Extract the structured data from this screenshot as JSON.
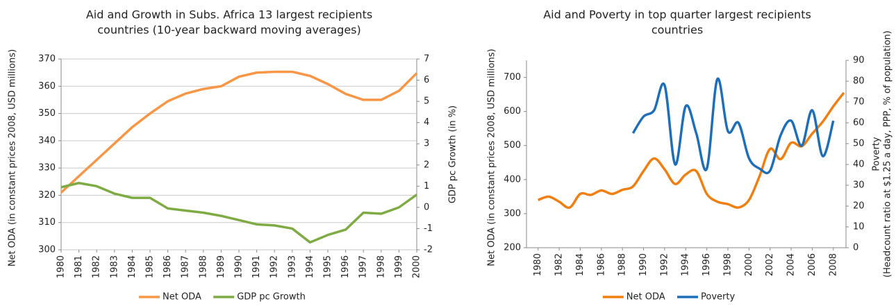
{
  "chart_data": [
    {
      "type": "line",
      "title": [
        "Aid and Growth in Subs. Africa 13 largest recipients",
        "countries (10-year backward moving averages)"
      ],
      "y_label": "Net ODA  (in constant prices 2008, USD millions)",
      "y2_label": [
        "GDP pc Growth (in %)"
      ],
      "x": [
        1980,
        1981,
        1982,
        1983,
        1984,
        1985,
        1986,
        1987,
        1988,
        1989,
        1990,
        1991,
        1992,
        1993,
        1994,
        1995,
        1996,
        1997,
        1998,
        1999,
        2000
      ],
      "xlim": [
        1980,
        2000
      ],
      "xticks": [
        1980,
        1981,
        1982,
        1983,
        1984,
        1985,
        1986,
        1987,
        1988,
        1989,
        1990,
        1991,
        1992,
        1993,
        1994,
        1995,
        1996,
        1997,
        1998,
        1999,
        2000
      ],
      "ylim": [
        300,
        370
      ],
      "yticks": [
        300,
        310,
        320,
        330,
        340,
        350,
        360,
        370
      ],
      "y2lim": [
        -2,
        7
      ],
      "y2ticks": [
        -2,
        -1,
        0,
        1,
        2,
        3,
        4,
        5,
        6,
        7
      ],
      "grid": true,
      "smooth": false,
      "legend": "bottom",
      "series": [
        {
          "name": "Net ODA",
          "color": "#f79646",
          "values": [
            321,
            327,
            333,
            339,
            345,
            350,
            354.5,
            357.3,
            359,
            360,
            363.5,
            365,
            365.3,
            365.3,
            363.8,
            360.8,
            357.2,
            355,
            355,
            358.3,
            364.8
          ]
        },
        {
          "name": "GDP pc Growth",
          "color": "#7fab45",
          "axis": "y2",
          "values": [
            0.95,
            1.15,
            1.0,
            0.65,
            0.45,
            0.45,
            -0.05,
            -0.15,
            -0.25,
            -0.4,
            -0.6,
            -0.8,
            -0.85,
            -1.0,
            -1.65,
            -1.3,
            -1.05,
            -0.25,
            -0.3,
            0,
            0.6
          ]
        }
      ]
    },
    {
      "type": "line",
      "title": [
        "Aid and Poverty in top quarter largest recipients",
        "countries"
      ],
      "y_label": "Net ODA  (in constant prices 2008, USD millions)",
      "y2_label": [
        "Poverty",
        "(Headcount ratio at $1.25 a day, PPP, % of population)"
      ],
      "x": [
        1980,
        1981,
        1982,
        1983,
        1984,
        1985,
        1986,
        1987,
        1988,
        1989,
        1990,
        1991,
        1992,
        1993,
        1994,
        1995,
        1996,
        1997,
        1998,
        1999,
        2000,
        2001,
        2002,
        2003,
        2004,
        2005,
        2006,
        2007,
        2008,
        2009
      ],
      "xlim": [
        1978.9,
        2009.2
      ],
      "xticks": [
        1980,
        1982,
        1984,
        1986,
        1988,
        1990,
        1992,
        1994,
        1996,
        1998,
        2000,
        2002,
        2004,
        2006,
        2008
      ],
      "ylim": [
        200,
        750
      ],
      "yticks": [
        200,
        300,
        400,
        500,
        600,
        700
      ],
      "y2lim": [
        0,
        90
      ],
      "y2ticks": [
        0,
        10,
        20,
        30,
        40,
        50,
        60,
        70,
        80,
        90
      ],
      "grid": false,
      "smooth": true,
      "legend": "bottom",
      "series": [
        {
          "name": "Net ODA",
          "color": "#f07f12",
          "values": [
            340,
            350,
            335,
            318,
            358,
            355,
            368,
            358,
            370,
            380,
            425,
            462,
            430,
            387,
            415,
            425,
            358,
            335,
            328,
            318,
            340,
            410,
            490,
            460,
            508,
            498,
            535,
            570,
            615,
            655
          ]
        },
        {
          "name": "Poverty",
          "color": "#1f6fb8",
          "axis": "y2",
          "values": [
            null,
            null,
            null,
            null,
            null,
            null,
            null,
            null,
            null,
            55,
            63,
            66,
            78,
            40,
            68,
            55,
            38,
            81,
            56,
            60,
            43,
            38,
            37,
            54,
            61,
            49,
            66,
            44,
            61,
            null
          ]
        }
      ]
    }
  ]
}
